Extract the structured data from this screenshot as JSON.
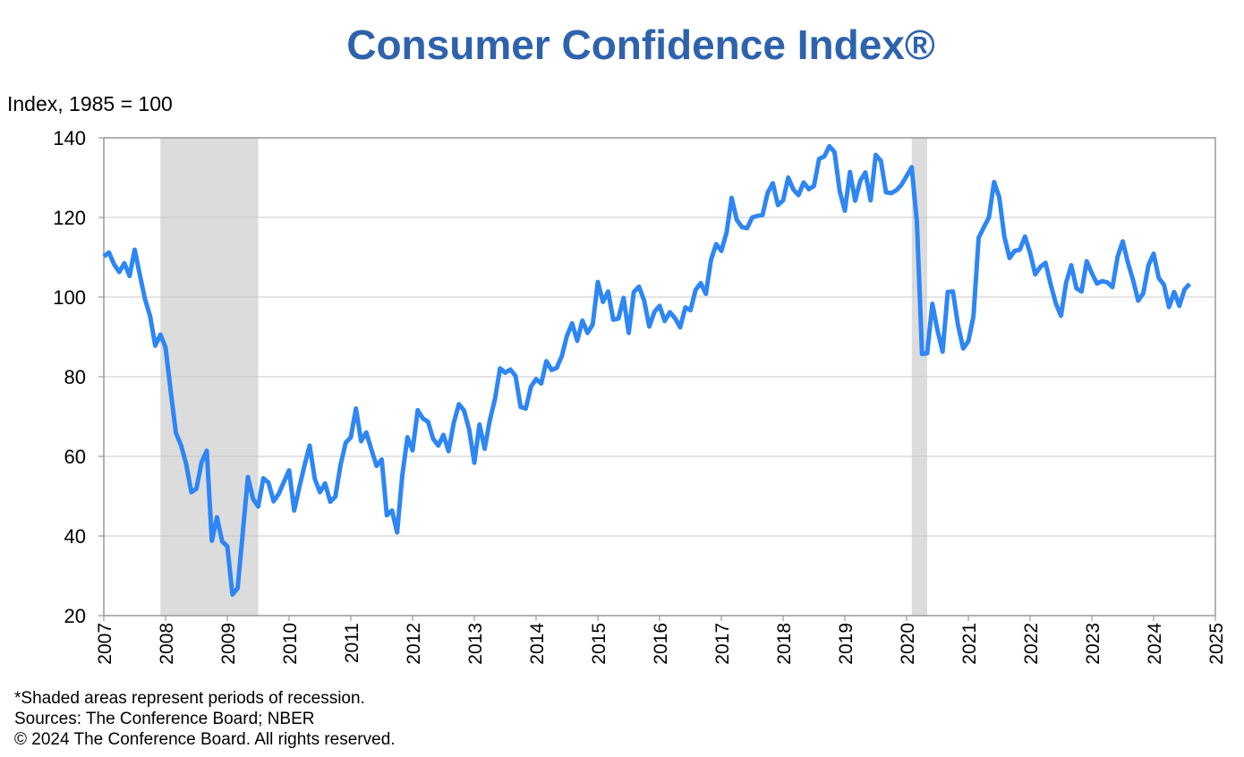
{
  "chart_data": {
    "type": "line",
    "title": "Consumer Confidence Index®",
    "y_label": "Index, 1985 = 100",
    "notes": [
      "*Shaded areas represent periods of recession.",
      "Sources: The Conference Board;  NBER",
      "© 2024 The Conference Board. All rights reserved."
    ],
    "xlim": [
      2007,
      2025
    ],
    "xticks": [
      2007,
      2008,
      2009,
      2010,
      2011,
      2012,
      2013,
      2014,
      2015,
      2016,
      2017,
      2018,
      2019,
      2020,
      2021,
      2022,
      2023,
      2024,
      2025
    ],
    "ylim": [
      20,
      140
    ],
    "yticks": [
      20,
      40,
      60,
      80,
      100,
      120,
      140
    ],
    "grid": true,
    "shaded_ranges": [
      [
        2007.917,
        2009.5
      ],
      [
        2020.083,
        2020.333
      ]
    ],
    "shade_color": "#dcdcdc",
    "x": [
      2007,
      2007.083,
      2007.167,
      2007.25,
      2007.333,
      2007.417,
      2007.5,
      2007.583,
      2007.667,
      2007.75,
      2007.833,
      2007.917,
      2008,
      2008.083,
      2008.167,
      2008.25,
      2008.333,
      2008.417,
      2008.5,
      2008.583,
      2008.667,
      2008.75,
      2008.833,
      2008.917,
      2009,
      2009.083,
      2009.167,
      2009.25,
      2009.333,
      2009.417,
      2009.5,
      2009.583,
      2009.667,
      2009.75,
      2009.833,
      2009.917,
      2010,
      2010.083,
      2010.167,
      2010.25,
      2010.333,
      2010.417,
      2010.5,
      2010.583,
      2010.667,
      2010.75,
      2010.833,
      2010.917,
      2011,
      2011.083,
      2011.167,
      2011.25,
      2011.333,
      2011.417,
      2011.5,
      2011.583,
      2011.667,
      2011.75,
      2011.833,
      2011.917,
      2012,
      2012.083,
      2012.167,
      2012.25,
      2012.333,
      2012.417,
      2012.5,
      2012.583,
      2012.667,
      2012.75,
      2012.833,
      2012.917,
      2013,
      2013.083,
      2013.167,
      2013.25,
      2013.333,
      2013.417,
      2013.5,
      2013.583,
      2013.667,
      2013.75,
      2013.833,
      2013.917,
      2014,
      2014.083,
      2014.167,
      2014.25,
      2014.333,
      2014.417,
      2014.5,
      2014.583,
      2014.667,
      2014.75,
      2014.833,
      2014.917,
      2015,
      2015.083,
      2015.167,
      2015.25,
      2015.333,
      2015.417,
      2015.5,
      2015.583,
      2015.667,
      2015.75,
      2015.833,
      2015.917,
      2016,
      2016.083,
      2016.167,
      2016.25,
      2016.333,
      2016.417,
      2016.5,
      2016.583,
      2016.667,
      2016.75,
      2016.833,
      2016.917,
      2017,
      2017.083,
      2017.167,
      2017.25,
      2017.333,
      2017.417,
      2017.5,
      2017.583,
      2017.667,
      2017.75,
      2017.833,
      2017.917,
      2018,
      2018.083,
      2018.167,
      2018.25,
      2018.333,
      2018.417,
      2018.5,
      2018.583,
      2018.667,
      2018.75,
      2018.833,
      2018.917,
      2019,
      2019.083,
      2019.167,
      2019.25,
      2019.333,
      2019.417,
      2019.5,
      2019.583,
      2019.667,
      2019.75,
      2019.833,
      2019.917,
      2020,
      2020.083,
      2020.167,
      2020.25,
      2020.333,
      2020.417,
      2020.5,
      2020.583,
      2020.667,
      2020.75,
      2020.833,
      2020.917,
      2021,
      2021.083,
      2021.167,
      2021.25,
      2021.333,
      2021.417,
      2021.5,
      2021.583,
      2021.667,
      2021.75,
      2021.833,
      2021.917,
      2022,
      2022.083,
      2022.167,
      2022.25,
      2022.333,
      2022.417,
      2022.5,
      2022.583,
      2022.667,
      2022.75,
      2022.833,
      2022.917,
      2023,
      2023.083,
      2023.167,
      2023.25,
      2023.333,
      2023.417,
      2023.5,
      2023.583,
      2023.667,
      2023.75,
      2023.833,
      2023.917,
      2024,
      2024.083,
      2024.167,
      2024.25,
      2024.333,
      2024.417,
      2024.5,
      2024.583
    ],
    "series": [
      {
        "color": "#2e86f5",
        "values": [
          110.2,
          111.2,
          108.2,
          106.3,
          108.5,
          105.3,
          111.9,
          105.6,
          99.5,
          95.2,
          87.8,
          90.6,
          87.3,
          76.4,
          65.9,
          62.8,
          58.1,
          51.0,
          51.9,
          58.5,
          61.4,
          38.8,
          44.7,
          38.6,
          37.4,
          25.3,
          26.9,
          40.8,
          54.8,
          49.3,
          47.4,
          54.5,
          53.4,
          48.7,
          50.6,
          53.6,
          56.5,
          46.4,
          52.3,
          57.7,
          62.7,
          54.3,
          51.0,
          53.2,
          48.6,
          49.9,
          57.8,
          63.4,
          64.8,
          72.0,
          63.8,
          66.0,
          61.7,
          57.6,
          59.2,
          45.2,
          46.4,
          40.9,
          55.2,
          64.8,
          61.5,
          71.6,
          69.5,
          68.7,
          64.4,
          62.7,
          65.4,
          61.3,
          68.4,
          73.1,
          71.5,
          66.7,
          58.4,
          68.0,
          61.9,
          69.0,
          74.3,
          82.1,
          81.0,
          81.8,
          80.2,
          72.4,
          72.0,
          77.5,
          79.4,
          78.3,
          83.9,
          81.7,
          82.2,
          85.2,
          90.3,
          93.4,
          89.0,
          94.1,
          91.0,
          93.1,
          103.8,
          98.8,
          101.4,
          94.3,
          94.6,
          99.8,
          91.0,
          101.3,
          102.6,
          99.1,
          92.6,
          96.3,
          97.8,
          94.0,
          96.2,
          94.7,
          92.4,
          97.4,
          96.7,
          101.8,
          103.5,
          100.8,
          109.4,
          113.3,
          111.6,
          116.1,
          124.9,
          119.4,
          117.6,
          117.3,
          120.0,
          120.4,
          120.6,
          126.2,
          128.6,
          123.1,
          124.3,
          130.0,
          127.0,
          125.6,
          128.8,
          127.1,
          127.9,
          134.7,
          135.3,
          137.9,
          136.4,
          126.6,
          121.7,
          131.4,
          124.2,
          129.2,
          131.3,
          124.3,
          135.7,
          134.2,
          126.3,
          126.1,
          126.8,
          128.2,
          130.4,
          132.6,
          118.8,
          85.7,
          85.9,
          98.3,
          91.7,
          86.3,
          101.3,
          101.4,
          92.9,
          87.1,
          88.9,
          95.2,
          114.9,
          117.5,
          120.0,
          128.9,
          125.1,
          115.2,
          109.8,
          111.6,
          111.9,
          115.2,
          111.1,
          105.7,
          107.6,
          108.6,
          103.2,
          98.4,
          95.3,
          103.6,
          108.0,
          102.2,
          101.4,
          109.0,
          106.0,
          103.4,
          104.0,
          103.7,
          102.5,
          110.1,
          114.0,
          108.7,
          104.3,
          99.1,
          101.0,
          108.0,
          110.9,
          104.8,
          103.1,
          97.5,
          101.3,
          97.8,
          101.9,
          103.3
        ]
      }
    ]
  }
}
